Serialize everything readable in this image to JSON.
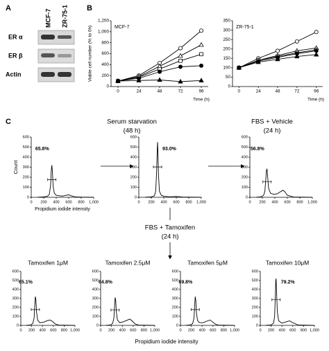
{
  "panel_a": {
    "label": "A",
    "columns": [
      "MCF-7",
      "ZR-75-1"
    ],
    "rows": [
      "ER α",
      "ER β",
      "Actin"
    ]
  },
  "panel_b_label": "B",
  "panel_c_label": "C",
  "arrow_labels": [
    [
      "Serum starvation",
      "(48 h)"
    ],
    [
      "FBS + Vehicle",
      "(24 h)"
    ],
    [
      "FBS + Tamoxifen",
      "(24 h)"
    ]
  ],
  "bottom_x_label": "Propidium iodide intensity",
  "chart_data": [
    {
      "type": "line",
      "title": "MCF-7",
      "x_label": "Time (h)",
      "y_label": "Viable cell number (% to 0h)",
      "x": [
        0,
        24,
        48,
        72,
        96
      ],
      "xlim": [
        -8,
        104
      ],
      "xticks": [
        0,
        24,
        48,
        72,
        96
      ],
      "ylim": [
        0,
        1200
      ],
      "yticks": [
        0,
        200,
        400,
        600,
        800,
        {
          "value": 1000,
          "label": "1,000"
        },
        {
          "value": 1200,
          "label": "1,200"
        }
      ],
      "series": [
        {
          "marker": "circle",
          "marker_fill": "#ffffff",
          "color": "#000000",
          "values": [
            100,
            200,
            430,
            700,
            1020
          ]
        },
        {
          "marker": "triangle",
          "marker_fill": "#ffffff",
          "color": "#000000",
          "values": [
            100,
            180,
            370,
            560,
            760
          ]
        },
        {
          "marker": "square",
          "marker_fill": "#ffffff",
          "color": "#000000",
          "values": [
            100,
            170,
            320,
            470,
            590
          ]
        },
        {
          "marker": "circle",
          "marker_fill": "#000000",
          "color": "#000000",
          "values": [
            100,
            150,
            270,
            360,
            380
          ]
        },
        {
          "marker": "triangle",
          "marker_fill": "#000000",
          "color": "#000000",
          "values": [
            100,
            110,
            120,
            90,
            110
          ]
        }
      ]
    },
    {
      "type": "line",
      "title": "ZR-75-1",
      "x_label": "Time (h)",
      "x": [
        0,
        24,
        48,
        72,
        96
      ],
      "xlim": [
        -8,
        104
      ],
      "xticks": [
        0,
        24,
        48,
        72,
        96
      ],
      "ylim": [
        0,
        350
      ],
      "yticks": [
        0,
        50,
        100,
        150,
        200,
        250,
        300,
        350
      ],
      "series": [
        {
          "marker": "circle",
          "marker_fill": "#ffffff",
          "color": "#000000",
          "values": [
            100,
            150,
            190,
            240,
            290
          ]
        },
        {
          "marker": "triangle",
          "marker_fill": "#ffffff",
          "color": "#000000",
          "values": [
            100,
            140,
            165,
            190,
            205
          ]
        },
        {
          "marker": "square",
          "marker_fill": "#ffffff",
          "color": "#000000",
          "values": [
            100,
            140,
            160,
            180,
            195
          ]
        },
        {
          "marker": "circle",
          "marker_fill": "#000000",
          "color": "#000000",
          "values": [
            100,
            135,
            155,
            175,
            190
          ]
        },
        {
          "marker": "triangle",
          "marker_fill": "#000000",
          "color": "#000000",
          "values": [
            100,
            130,
            145,
            160,
            170
          ]
        }
      ]
    },
    {
      "type": "line",
      "annotation": "65.8%",
      "x_label": "Propidium iodide intensity",
      "y_label": "Count",
      "color": "#000000",
      "x": [
        100,
        200,
        260,
        290,
        310,
        320,
        330,
        340,
        350,
        370,
        400,
        450,
        500,
        560,
        600,
        640,
        700,
        800,
        1000
      ],
      "values": [
        0,
        5,
        10,
        30,
        120,
        260,
        320,
        250,
        110,
        40,
        20,
        15,
        12,
        20,
        25,
        15,
        5,
        2,
        0
      ],
      "xlim": [
        0,
        1000
      ],
      "xticks": [
        0,
        200,
        400,
        600,
        800,
        {
          "value": 1000,
          "label": "1,000"
        }
      ],
      "ylim": [
        0,
        600
      ],
      "yticks": [
        0,
        100,
        200,
        300,
        400,
        500,
        600
      ]
    },
    {
      "type": "line",
      "annotation": "93.0%",
      "color": "#000000",
      "x": [
        100,
        200,
        250,
        270,
        285,
        295,
        300,
        305,
        315,
        330,
        360,
        400,
        500,
        600,
        700,
        1000
      ],
      "values": [
        0,
        5,
        15,
        60,
        250,
        480,
        550,
        470,
        220,
        60,
        20,
        10,
        5,
        8,
        3,
        0
      ],
      "xlim": [
        0,
        1000
      ],
      "xticks": [
        0,
        200,
        400,
        600,
        800,
        {
          "value": 1000,
          "label": "1,000"
        }
      ],
      "ylim": [
        0,
        600
      ],
      "yticks": [
        0,
        100,
        200,
        300,
        400,
        500,
        600
      ]
    },
    {
      "type": "line",
      "annotation": "56.8%",
      "color": "#000000",
      "x": [
        100,
        180,
        220,
        240,
        255,
        265,
        275,
        285,
        300,
        330,
        380,
        440,
        500,
        530,
        560,
        600,
        700,
        1000
      ],
      "values": [
        0,
        5,
        20,
        60,
        180,
        270,
        280,
        200,
        90,
        40,
        30,
        35,
        60,
        70,
        55,
        20,
        3,
        0
      ],
      "xlim": [
        0,
        1000
      ],
      "xticks": [
        0,
        200,
        400,
        600,
        800,
        {
          "value": 1000,
          "label": "1,000"
        }
      ],
      "ylim": [
        0,
        600
      ],
      "yticks": [
        0,
        100,
        200,
        300,
        400,
        500,
        600
      ]
    },
    {
      "type": "line",
      "title": "Tamoxifen 1μM",
      "annotation": "65.1%",
      "color": "#000000",
      "x": [
        100,
        180,
        220,
        245,
        258,
        268,
        278,
        290,
        310,
        350,
        420,
        500,
        540,
        580,
        640,
        700,
        1000
      ],
      "values": [
        0,
        5,
        20,
        80,
        230,
        320,
        290,
        150,
        60,
        30,
        35,
        55,
        60,
        45,
        15,
        3,
        0
      ],
      "xlim": [
        0,
        1000
      ],
      "xticks": [
        0,
        200,
        400,
        600,
        800,
        {
          "value": 1000,
          "label": "1,000"
        }
      ],
      "ylim": [
        0,
        600
      ],
      "yticks": [
        0,
        100,
        200,
        300,
        400,
        500,
        600
      ]
    },
    {
      "type": "line",
      "title": "Tamoxifen 2.5μM",
      "annotation": "64.8%",
      "color": "#000000",
      "x": [
        100,
        180,
        220,
        245,
        258,
        268,
        278,
        290,
        310,
        350,
        420,
        500,
        540,
        580,
        640,
        700,
        1000
      ],
      "values": [
        0,
        5,
        20,
        80,
        220,
        310,
        280,
        150,
        60,
        30,
        40,
        60,
        70,
        50,
        15,
        3,
        0
      ],
      "xlim": [
        0,
        1000
      ],
      "xticks": [
        0,
        200,
        400,
        600,
        800,
        {
          "value": 1000,
          "label": "1,000"
        }
      ],
      "ylim": [
        0,
        600
      ],
      "yticks": [
        0,
        100,
        200,
        300,
        400,
        500,
        600
      ]
    },
    {
      "type": "line",
      "title": "Tamoxifen 5μM",
      "annotation": "69.8%",
      "color": "#000000",
      "x": [
        100,
        180,
        225,
        250,
        263,
        273,
        283,
        295,
        315,
        350,
        420,
        500,
        545,
        590,
        650,
        700,
        1000
      ],
      "values": [
        0,
        5,
        20,
        80,
        230,
        320,
        280,
        140,
        55,
        30,
        30,
        50,
        60,
        40,
        12,
        3,
        0
      ],
      "xlim": [
        0,
        1000
      ],
      "xticks": [
        0,
        200,
        400,
        600,
        800,
        {
          "value": 1000,
          "label": "1,000"
        }
      ],
      "ylim": [
        0,
        600
      ],
      "yticks": [
        0,
        100,
        200,
        300,
        400,
        500,
        600
      ]
    },
    {
      "type": "line",
      "title": "Tamoxifen 10μM",
      "annotation": "79.2%",
      "color": "#000000",
      "x": [
        100,
        200,
        245,
        265,
        278,
        286,
        292,
        300,
        315,
        340,
        400,
        480,
        540,
        600,
        700,
        1000
      ],
      "values": [
        0,
        5,
        25,
        100,
        330,
        500,
        520,
        380,
        150,
        50,
        25,
        40,
        50,
        30,
        4,
        0
      ],
      "xlim": [
        0,
        1000
      ],
      "xticks": [
        0,
        200,
        400,
        600,
        800,
        {
          "value": 1000,
          "label": "1,000"
        }
      ],
      "ylim": [
        0,
        600
      ],
      "yticks": [
        0,
        100,
        200,
        300,
        400,
        500,
        600
      ]
    }
  ]
}
